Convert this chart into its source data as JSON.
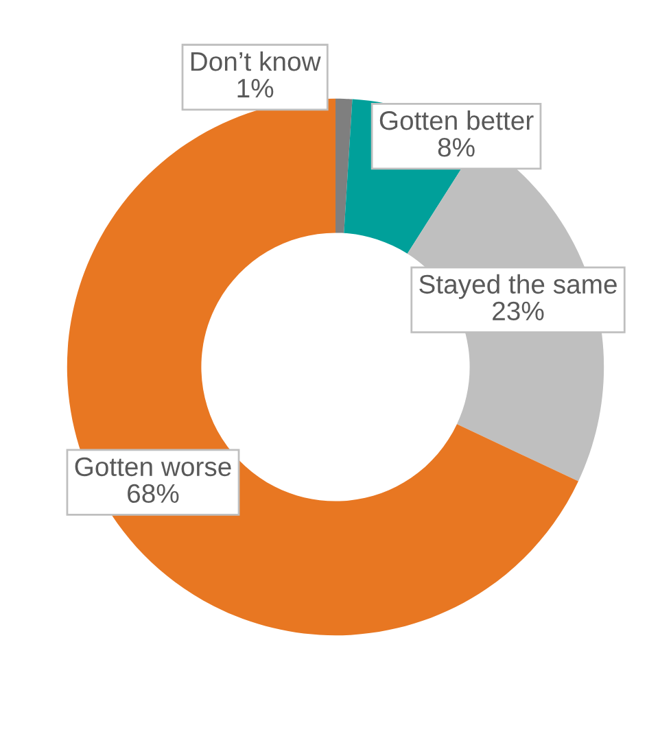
{
  "chart_data": {
    "type": "donut",
    "categories": [
      "Don’t know",
      "Gotten better",
      "Stayed the same",
      "Gotten worse"
    ],
    "values": [
      1,
      8,
      23,
      68
    ],
    "value_labels": [
      "1%",
      "8%",
      "23%",
      "68%"
    ],
    "colors": [
      "#7f7f7f",
      "#00a09a",
      "#bfbfbf",
      "#e87722"
    ],
    "legend": false
  }
}
